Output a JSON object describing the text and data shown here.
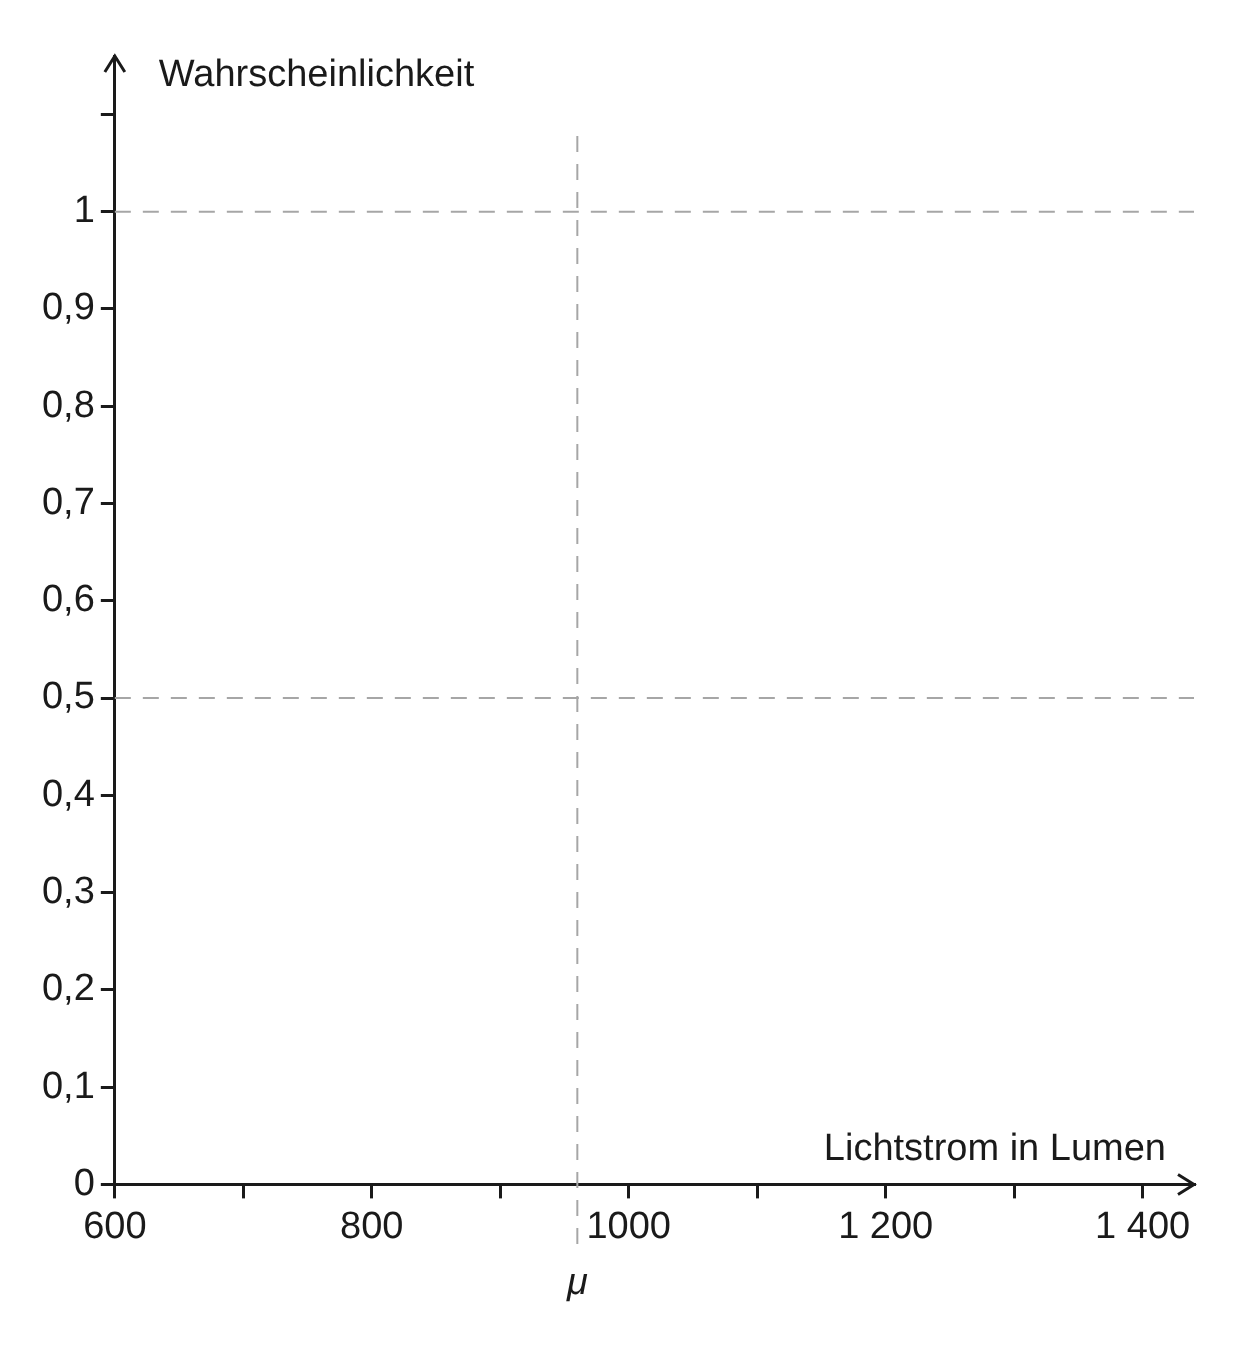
{
  "chart_data": {
    "type": "line",
    "xlabel": "Lichtstrom in Lumen",
    "ylabel": "Wahrscheinlichkeit",
    "xlim": [
      600,
      1440
    ],
    "xticks": [
      600,
      {
        "value": 700,
        "label": null
      },
      800,
      {
        "value": 900,
        "label": null
      },
      1000,
      {
        "value": 1100,
        "label": null
      },
      {
        "value": 1200,
        "label": "1 200"
      },
      {
        "value": 1300,
        "label": null
      },
      {
        "value": 1400,
        "label": "1 400"
      }
    ],
    "ylim": [
      0,
      1.16
    ],
    "yticks": [
      0,
      {
        "value": 0.1,
        "label": "0,1"
      },
      {
        "value": 0.2,
        "label": "0,2"
      },
      {
        "value": 0.3,
        "label": "0,3"
      },
      {
        "value": 0.4,
        "label": "0,4"
      },
      {
        "value": 0.5,
        "label": "0,5"
      },
      {
        "value": 0.6,
        "label": "0,6"
      },
      {
        "value": 0.7,
        "label": "0,7"
      },
      {
        "value": 0.8,
        "label": "0,8"
      },
      {
        "value": 0.9,
        "label": "0,9"
      },
      1,
      {
        "value": 1.1,
        "label": null
      }
    ],
    "ref_lines": [
      {
        "axis": "y",
        "value": 1,
        "color": "#a6a6a6",
        "line_style": "dashed"
      },
      {
        "axis": "y",
        "value": 0.5,
        "color": "#a6a6a6",
        "line_style": "dashed"
      },
      {
        "axis": "x",
        "value": 960,
        "label": "μ",
        "color": "#a6a6a6",
        "line_style": "dashed"
      }
    ],
    "grid": false,
    "legend": false
  }
}
